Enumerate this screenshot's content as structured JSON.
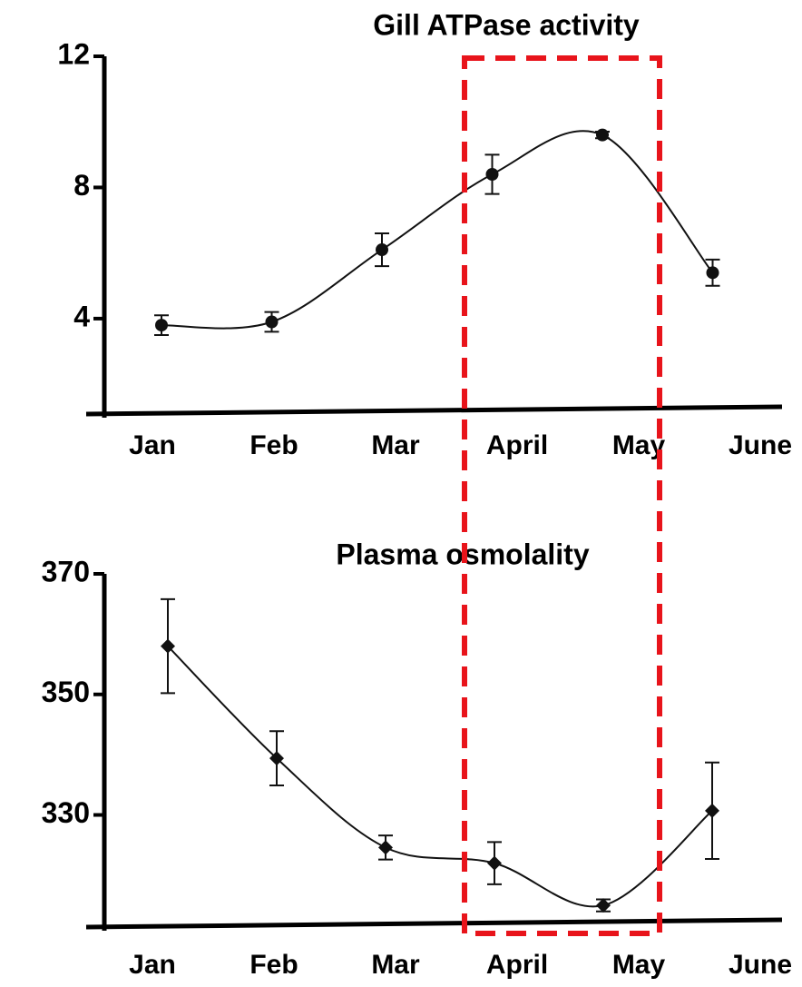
{
  "chart_data": [
    {
      "type": "line",
      "title": "Gill ATPase activity",
      "categories": [
        "Jan",
        "Feb",
        "Mar",
        "April",
        "May",
        "June"
      ],
      "series": [
        {
          "name": "Gill ATPase activity",
          "color": "#111111",
          "values": [
            3.8,
            3.9,
            6.1,
            8.4,
            9.6,
            5.4
          ],
          "errors": [
            0.3,
            0.3,
            0.5,
            0.6,
            0.1,
            0.4
          ]
        }
      ],
      "ylim": [
        1.2,
        12
      ],
      "yticks": [
        4,
        8,
        12
      ],
      "grid": false
    },
    {
      "type": "line",
      "title": "Plasma osmolality",
      "categories": [
        "Jan",
        "Feb",
        "Mar",
        "April",
        "May",
        "June"
      ],
      "series": [
        {
          "name": "Plasma osmolality",
          "color": "#111111",
          "values": [
            358,
            339.4,
            324.6,
            322,
            315,
            330.7
          ],
          "errors": [
            7.8,
            4.5,
            2,
            3.5,
            1,
            8
          ]
        }
      ],
      "ylim": [
        312,
        370
      ],
      "yticks": [
        330,
        350,
        370
      ],
      "grid": false
    }
  ]
}
